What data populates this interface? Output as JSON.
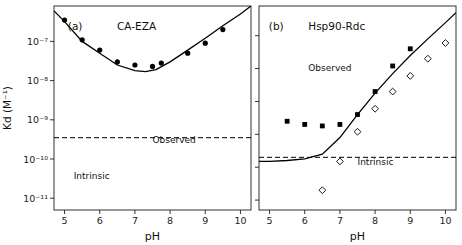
{
  "chart_data": [
    {
      "type": "line",
      "title": "CA-EZA",
      "x_label": "pH",
      "y_label": "Kd (M⁻¹)",
      "log": "y",
      "grid": false,
      "xlim": [
        4.7,
        10.3
      ],
      "ylim": [
        5e-12,
        8e-07
      ],
      "xticks": [
        5,
        6,
        7,
        8,
        9,
        10
      ],
      "yticks": [
        {
          "value": 1e-11,
          "label": "10⁻¹¹"
        },
        {
          "value": 1e-10,
          "label": "10⁻¹⁰"
        },
        {
          "value": 1e-09,
          "label": "10⁻⁹"
        },
        {
          "value": 1e-08,
          "label": "10⁻⁸"
        },
        {
          "value": 1e-07,
          "label": "10⁻⁷"
        }
      ],
      "annotations": [
        "(a)",
        "Observed",
        "Intrinsic"
      ],
      "reference_line": {
        "value": 3.5e-10,
        "color": "black",
        "line_style": "dashed"
      },
      "series": [
        {
          "type": "line",
          "color": "black",
          "line_style": "solid",
          "x": [
            4.7,
            5.0,
            5.5,
            6.0,
            6.5,
            7.0,
            7.3,
            7.6,
            8.0,
            8.5,
            9.0,
            9.5,
            10.0,
            10.3
          ],
          "values": [
            6e-07,
            3.2e-07,
            1e-07,
            5e-08,
            2.5e-08,
            1.8e-08,
            1.7e-08,
            1.9e-08,
            3e-08,
            6e-08,
            1.2e-07,
            2.5e-07,
            5e-07,
            8e-07
          ]
        },
        {
          "type": "scatter",
          "color": "black",
          "marker": "circle",
          "x": [
            5.0,
            5.5,
            6.0,
            6.5,
            7.0,
            7.5,
            7.75,
            8.5,
            9.0,
            9.5
          ],
          "values": [
            3.5e-07,
            1.1e-07,
            6e-08,
            3e-08,
            2.5e-08,
            2.3e-08,
            2.8e-08,
            5e-08,
            9e-08,
            2e-07
          ]
        }
      ]
    },
    {
      "type": "line",
      "title": "Hsp90-Rdc",
      "x_label": "pH",
      "log": "y",
      "grid": false,
      "tick_labels": "x",
      "xlim": [
        4.7,
        10.3
      ],
      "ylim": [
        5e-12,
        8e-06
      ],
      "xticks": [
        5,
        6,
        7,
        8,
        9,
        10
      ],
      "yticks": [
        1e-11,
        1e-10,
        1e-09,
        1e-08,
        1e-07,
        1e-06
      ],
      "annotations": [
        "(b)",
        "Observed",
        "Intrinsic"
      ],
      "reference_line": {
        "value": 2e-10,
        "color": "black",
        "line_style": "dashed"
      },
      "series": [
        {
          "type": "line",
          "color": "black",
          "line_style": "solid",
          "x": [
            4.7,
            5.0,
            5.5,
            6.0,
            6.5,
            7.0,
            7.5,
            8.0,
            8.5,
            9.0,
            9.5,
            10.0,
            10.3
          ],
          "values": [
            1.5e-10,
            1.5e-10,
            1.6e-10,
            1.8e-10,
            2.5e-10,
            8e-10,
            4e-09,
            1.8e-08,
            7e-08,
            2.5e-07,
            8e-07,
            2.5e-06,
            5e-06
          ]
        },
        {
          "type": "scatter",
          "color": "black",
          "marker": "square",
          "x": [
            5.5,
            6.0,
            6.5,
            7.0,
            7.5,
            8.0,
            8.5,
            9.0
          ],
          "values": [
            2.5e-09,
            2e-09,
            1.8e-09,
            2e-09,
            4e-09,
            2e-08,
            1.2e-07,
            4e-07
          ]
        },
        {
          "type": "scatter",
          "color": "black",
          "marker": "open-diamond",
          "x": [
            6.5,
            7.0,
            7.5,
            8.0,
            8.5,
            9.0,
            9.5,
            10.0
          ],
          "values": [
            2e-11,
            1.5e-10,
            1.2e-09,
            6e-09,
            2e-08,
            6e-08,
            2e-07,
            6e-07
          ]
        }
      ]
    }
  ]
}
